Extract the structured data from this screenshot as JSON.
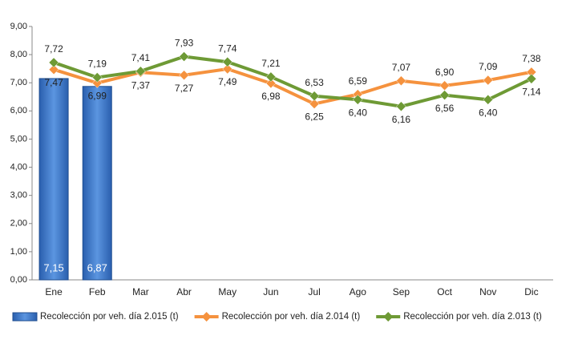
{
  "chart_data": {
    "type": "bar_line",
    "categories": [
      "Ene",
      "Feb",
      "Mar",
      "Abr",
      "May",
      "Jun",
      "Jul",
      "Ago",
      "Sep",
      "Oct",
      "Nov",
      "Dic"
    ],
    "series": [
      {
        "name": "Recolección por veh. día 2.015 (t)",
        "type": "bar",
        "color": "#3d78c9",
        "values": [
          7.15,
          6.87,
          null,
          null,
          null,
          null,
          null,
          null,
          null,
          null,
          null,
          null
        ],
        "value_labels": [
          "7,15",
          "6,87",
          null,
          null,
          null,
          null,
          null,
          null,
          null,
          null,
          null,
          null
        ]
      },
      {
        "name": "Recolección por veh. día 2.014 (t)",
        "type": "line",
        "color": "#f5923e",
        "values": [
          7.47,
          6.99,
          7.37,
          7.27,
          7.49,
          6.98,
          6.25,
          6.59,
          7.07,
          6.9,
          7.09,
          7.38
        ],
        "value_labels": [
          "7,47",
          "6,99",
          "7,37",
          "7,27",
          "7,49",
          "6,98",
          "6,25",
          "6,59",
          "7,07",
          "6,90",
          "7,09",
          "7,38"
        ]
      },
      {
        "name": "Recolección por veh. día 2.013 (t)",
        "type": "line",
        "color": "#6e9a35",
        "values": [
          7.72,
          7.19,
          7.41,
          7.93,
          7.74,
          7.21,
          6.53,
          6.4,
          6.16,
          6.56,
          6.4,
          7.14
        ],
        "value_labels": [
          "7,72",
          "7,19",
          "7,41",
          "7,93",
          "7,74",
          "7,21",
          "6,53",
          "6,40",
          "6,16",
          "6,56",
          "6,40",
          "7,14"
        ]
      }
    ],
    "ylim": [
      0,
      9
    ],
    "yticks": [
      {
        "value": 0,
        "label": "0,00"
      },
      {
        "value": 1,
        "label": "1,00"
      },
      {
        "value": 2,
        "label": "2,00"
      },
      {
        "value": 3,
        "label": "3,00"
      },
      {
        "value": 4,
        "label": "4,00"
      },
      {
        "value": 5,
        "label": "5,00"
      },
      {
        "value": 6,
        "label": "6,00"
      },
      {
        "value": 7,
        "label": "7,00"
      },
      {
        "value": 8,
        "label": "8,00"
      },
      {
        "value": 9,
        "label": "9,00"
      }
    ],
    "grid": false,
    "legend": "bottom"
  }
}
